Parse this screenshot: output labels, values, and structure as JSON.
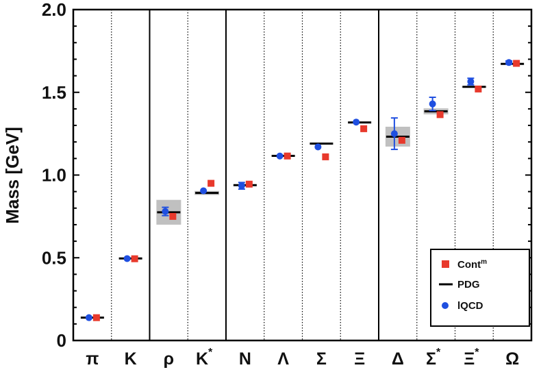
{
  "chart_data": {
    "type": "scatter",
    "ylabel": "Mass [GeV]",
    "xlabel": "",
    "ylim": [
      0,
      2.0
    ],
    "yticks": [
      "0",
      "0.5",
      "1.0",
      "1.5",
      "2.0"
    ],
    "yticks_values": [
      0,
      0.5,
      1.0,
      1.5,
      2.0
    ],
    "grid": false,
    "legend_position": "bottom-right",
    "categories": [
      {
        "base": "π",
        "sup": ""
      },
      {
        "base": "K",
        "sup": ""
      },
      {
        "base": "ρ",
        "sup": ""
      },
      {
        "base": "K",
        "sup": "*"
      },
      {
        "base": "N",
        "sup": ""
      },
      {
        "base": "Λ",
        "sup": ""
      },
      {
        "base": "Σ",
        "sup": ""
      },
      {
        "base": "Ξ",
        "sup": ""
      },
      {
        "base": "Δ",
        "sup": ""
      },
      {
        "base": "Σ",
        "sup": "*"
      },
      {
        "base": "Ξ",
        "sup": "*"
      },
      {
        "base": "Ω",
        "sup": ""
      }
    ],
    "group_separators_after": [
      1,
      3,
      7
    ],
    "series": [
      {
        "name": "Cont",
        "name_sup": "m",
        "marker": "square",
        "color": "#e8392c",
        "values": [
          0.138,
          0.494,
          0.75,
          0.95,
          0.945,
          1.115,
          1.11,
          1.28,
          1.21,
          1.365,
          1.52,
          1.675
        ]
      },
      {
        "name": "PDG",
        "marker": "line",
        "color": "#000000",
        "values": [
          0.138,
          0.496,
          0.775,
          0.892,
          0.939,
          1.116,
          1.19,
          1.318,
          1.232,
          1.385,
          1.533,
          1.672
        ],
        "bands": [
          0,
          0,
          0.075,
          0.012,
          0,
          0,
          0,
          0,
          0.06,
          0.018,
          0.005,
          0
        ]
      },
      {
        "name": "lQCD",
        "marker": "circle",
        "color": "#1f4fe0",
        "values": [
          0.138,
          0.495,
          0.78,
          0.905,
          0.935,
          1.115,
          1.17,
          1.32,
          1.25,
          1.43,
          1.565,
          1.68
        ],
        "errors": [
          0,
          0,
          0.025,
          0,
          0.02,
          0,
          0,
          0,
          0.095,
          0.04,
          0.02,
          0.01
        ]
      }
    ]
  },
  "colors": {
    "band": "#c0c0c0",
    "axis": "#000000"
  }
}
